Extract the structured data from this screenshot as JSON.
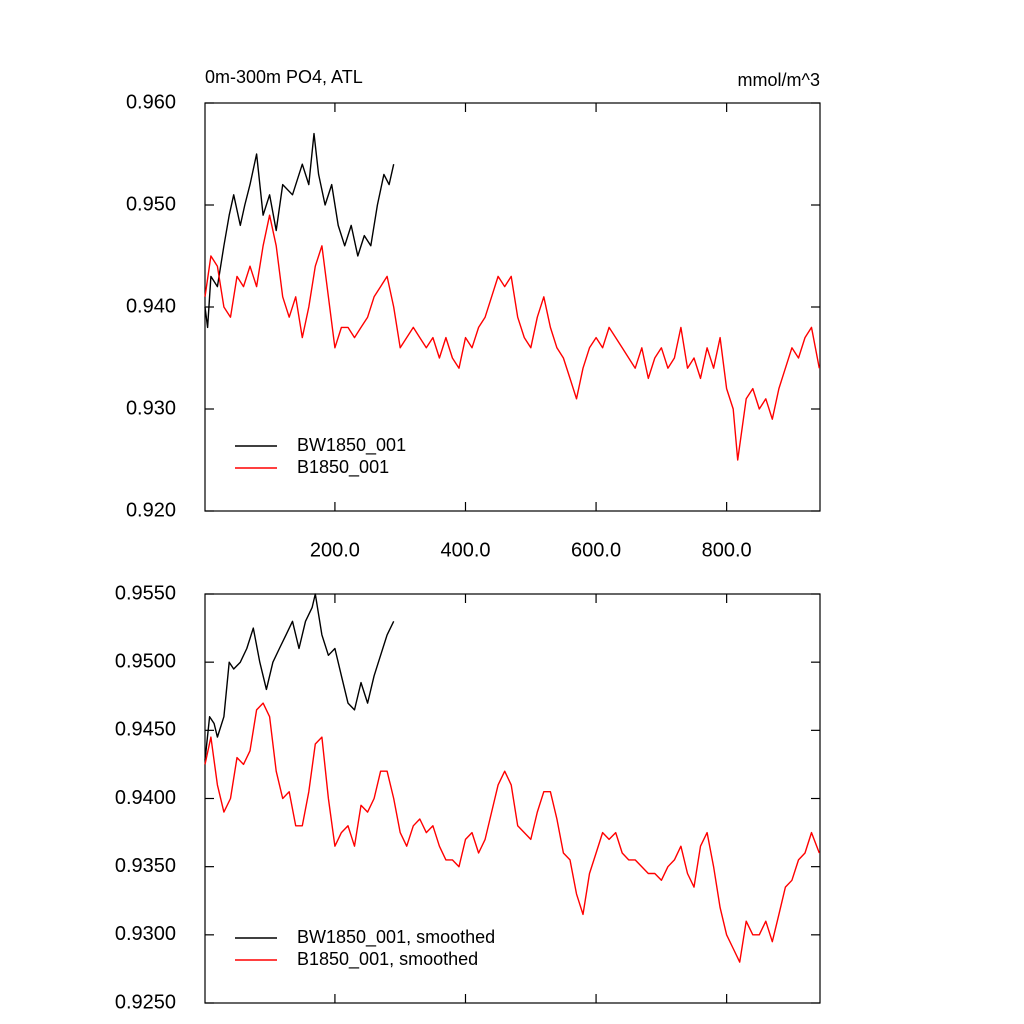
{
  "chart_data": [
    {
      "type": "line",
      "title": "0m-300m PO4, ATL",
      "units": "mmol/m^3",
      "xlim": [
        1,
        943
      ],
      "ylim": [
        0.92,
        0.96
      ],
      "xticks": [
        {
          "value": 200,
          "label": "200.0"
        },
        {
          "value": 400,
          "label": "400.0"
        },
        {
          "value": 600,
          "label": "600.0"
        },
        {
          "value": 800,
          "label": "800.0"
        }
      ],
      "yticks": [
        {
          "value": 0.92,
          "label": "0.920"
        },
        {
          "value": 0.93,
          "label": "0.930"
        },
        {
          "value": 0.94,
          "label": "0.940"
        },
        {
          "value": 0.95,
          "label": "0.950"
        },
        {
          "value": 0.96,
          "label": "0.960"
        }
      ],
      "x_tick_labels": true,
      "legend": "lower left",
      "series": [
        {
          "name": "BW1850_001",
          "color": "#000000",
          "x": [
            1,
            5,
            10,
            20,
            30,
            38,
            45,
            55,
            62,
            70,
            80,
            90,
            100,
            110,
            120,
            135,
            150,
            160,
            168,
            175,
            185,
            195,
            205,
            215,
            225,
            235,
            245,
            255,
            265,
            275,
            283,
            290
          ],
          "values": [
            0.94,
            0.938,
            0.943,
            0.942,
            0.946,
            0.949,
            0.951,
            0.948,
            0.95,
            0.952,
            0.955,
            0.949,
            0.951,
            0.9475,
            0.952,
            0.951,
            0.954,
            0.952,
            0.957,
            0.953,
            0.95,
            0.952,
            0.948,
            0.946,
            0.948,
            0.945,
            0.947,
            0.946,
            0.95,
            0.953,
            0.952,
            0.954
          ]
        },
        {
          "name": "B1850_001",
          "color": "#ff0000",
          "x": [
            1,
            10,
            20,
            30,
            40,
            50,
            60,
            70,
            80,
            90,
            100,
            110,
            120,
            130,
            140,
            150,
            160,
            170,
            180,
            190,
            200,
            210,
            220,
            230,
            240,
            250,
            260,
            270,
            280,
            290,
            300,
            310,
            320,
            330,
            340,
            350,
            360,
            370,
            380,
            390,
            400,
            410,
            420,
            430,
            440,
            450,
            460,
            470,
            480,
            490,
            500,
            510,
            520,
            530,
            540,
            550,
            560,
            570,
            580,
            590,
            600,
            610,
            620,
            630,
            640,
            650,
            660,
            670,
            680,
            690,
            700,
            710,
            720,
            730,
            740,
            750,
            760,
            770,
            780,
            790,
            800,
            810,
            817,
            830,
            840,
            850,
            860,
            870,
            880,
            890,
            900,
            910,
            920,
            930,
            942
          ],
          "values": [
            0.941,
            0.945,
            0.944,
            0.94,
            0.939,
            0.943,
            0.942,
            0.944,
            0.942,
            0.946,
            0.949,
            0.946,
            0.941,
            0.939,
            0.941,
            0.937,
            0.94,
            0.944,
            0.946,
            0.941,
            0.936,
            0.938,
            0.938,
            0.937,
            0.938,
            0.939,
            0.941,
            0.942,
            0.943,
            0.94,
            0.936,
            0.937,
            0.938,
            0.937,
            0.936,
            0.937,
            0.935,
            0.937,
            0.935,
            0.934,
            0.937,
            0.936,
            0.938,
            0.939,
            0.941,
            0.943,
            0.942,
            0.943,
            0.939,
            0.937,
            0.936,
            0.939,
            0.941,
            0.938,
            0.936,
            0.935,
            0.933,
            0.931,
            0.934,
            0.936,
            0.937,
            0.936,
            0.938,
            0.937,
            0.936,
            0.935,
            0.934,
            0.936,
            0.933,
            0.935,
            0.936,
            0.934,
            0.935,
            0.938,
            0.934,
            0.935,
            0.933,
            0.936,
            0.934,
            0.937,
            0.932,
            0.93,
            0.925,
            0.931,
            0.932,
            0.93,
            0.931,
            0.929,
            0.932,
            0.934,
            0.936,
            0.935,
            0.937,
            0.938,
            0.934
          ]
        }
      ]
    },
    {
      "type": "line",
      "xlim": [
        1,
        943
      ],
      "ylim": [
        0.925,
        0.955
      ],
      "xticks": [
        200,
        400,
        600,
        800
      ],
      "yticks": [
        {
          "value": 0.925,
          "label": "0.9250"
        },
        {
          "value": 0.93,
          "label": "0.9300"
        },
        {
          "value": 0.935,
          "label": "0.9350"
        },
        {
          "value": 0.94,
          "label": "0.9400"
        },
        {
          "value": 0.945,
          "label": "0.9450"
        },
        {
          "value": 0.95,
          "label": "0.9500"
        },
        {
          "value": 0.955,
          "label": "0.9550"
        }
      ],
      "x_tick_labels": false,
      "legend": "lower left",
      "series": [
        {
          "name": "BW1850_001, smoothed",
          "color": "#000000",
          "x": [
            1,
            8,
            15,
            20,
            30,
            38,
            45,
            55,
            65,
            75,
            85,
            95,
            105,
            115,
            125,
            135,
            145,
            155,
            165,
            170,
            180,
            190,
            200,
            210,
            220,
            230,
            240,
            250,
            260,
            270,
            280,
            290
          ],
          "values": [
            0.9428,
            0.946,
            0.9455,
            0.9445,
            0.946,
            0.95,
            0.9495,
            0.95,
            0.951,
            0.9525,
            0.95,
            0.948,
            0.95,
            0.951,
            0.952,
            0.953,
            0.951,
            0.953,
            0.954,
            0.955,
            0.952,
            0.9505,
            0.951,
            0.949,
            0.947,
            0.9465,
            0.9485,
            0.947,
            0.949,
            0.9505,
            0.952,
            0.953
          ]
        },
        {
          "name": "B1850_001, smoothed",
          "color": "#ff0000",
          "x": [
            1,
            10,
            20,
            30,
            40,
            50,
            60,
            70,
            80,
            90,
            100,
            110,
            120,
            130,
            140,
            150,
            160,
            170,
            180,
            190,
            200,
            210,
            220,
            230,
            240,
            250,
            260,
            270,
            280,
            290,
            300,
            310,
            320,
            330,
            340,
            350,
            360,
            370,
            380,
            390,
            400,
            410,
            420,
            430,
            440,
            450,
            460,
            470,
            480,
            490,
            500,
            510,
            520,
            530,
            540,
            550,
            560,
            570,
            580,
            590,
            600,
            610,
            620,
            630,
            640,
            650,
            660,
            670,
            680,
            690,
            700,
            710,
            720,
            730,
            740,
            750,
            760,
            770,
            780,
            790,
            800,
            810,
            820,
            830,
            840,
            850,
            860,
            870,
            880,
            890,
            900,
            910,
            920,
            930,
            942
          ],
          "values": [
            0.9425,
            0.9445,
            0.941,
            0.939,
            0.94,
            0.943,
            0.9425,
            0.9435,
            0.9465,
            0.947,
            0.946,
            0.942,
            0.94,
            0.9405,
            0.938,
            0.938,
            0.9405,
            0.944,
            0.9445,
            0.94,
            0.9365,
            0.9375,
            0.938,
            0.9365,
            0.9395,
            0.939,
            0.94,
            0.942,
            0.942,
            0.94,
            0.9375,
            0.9365,
            0.938,
            0.9385,
            0.9375,
            0.938,
            0.9365,
            0.9355,
            0.9355,
            0.935,
            0.937,
            0.9375,
            0.936,
            0.937,
            0.939,
            0.941,
            0.942,
            0.941,
            0.938,
            0.9375,
            0.937,
            0.939,
            0.9405,
            0.9405,
            0.9385,
            0.936,
            0.9355,
            0.933,
            0.9315,
            0.9345,
            0.936,
            0.9375,
            0.937,
            0.9375,
            0.936,
            0.9355,
            0.9355,
            0.935,
            0.9345,
            0.9345,
            0.934,
            0.935,
            0.9355,
            0.9365,
            0.9345,
            0.9335,
            0.9365,
            0.9375,
            0.935,
            0.932,
            0.93,
            0.929,
            0.928,
            0.931,
            0.93,
            0.93,
            0.931,
            0.9295,
            0.9315,
            0.9335,
            0.934,
            0.9355,
            0.936,
            0.9375,
            0.936
          ]
        }
      ]
    }
  ]
}
